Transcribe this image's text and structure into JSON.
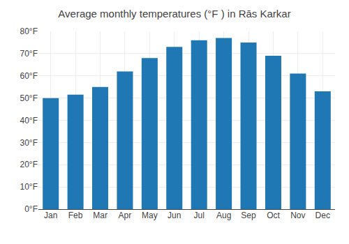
{
  "chart_data": {
    "type": "bar",
    "title": "Average monthly temperatures (°F ) in Rās Karkar",
    "categories": [
      "Jan",
      "Feb",
      "Mar",
      "Apr",
      "May",
      "Jun",
      "Jul",
      "Aug",
      "Sep",
      "Oct",
      "Nov",
      "Dec"
    ],
    "values": [
      50,
      51.5,
      55,
      62,
      68,
      73,
      76,
      77,
      75,
      69,
      61,
      53
    ],
    "ylim": [
      0,
      80
    ],
    "yticks": [
      {
        "value": 0,
        "label": "0°F"
      },
      {
        "value": 10,
        "label": "10°F"
      },
      {
        "value": 20,
        "label": "20°F"
      },
      {
        "value": 30,
        "label": "30°F"
      },
      {
        "value": 40,
        "label": "40°F"
      },
      {
        "value": 50,
        "label": "50°F"
      },
      {
        "value": 60,
        "label": "60°F"
      },
      {
        "value": 70,
        "label": "70°F"
      },
      {
        "value": 80,
        "label": "80°F"
      }
    ],
    "grid": true
  }
}
